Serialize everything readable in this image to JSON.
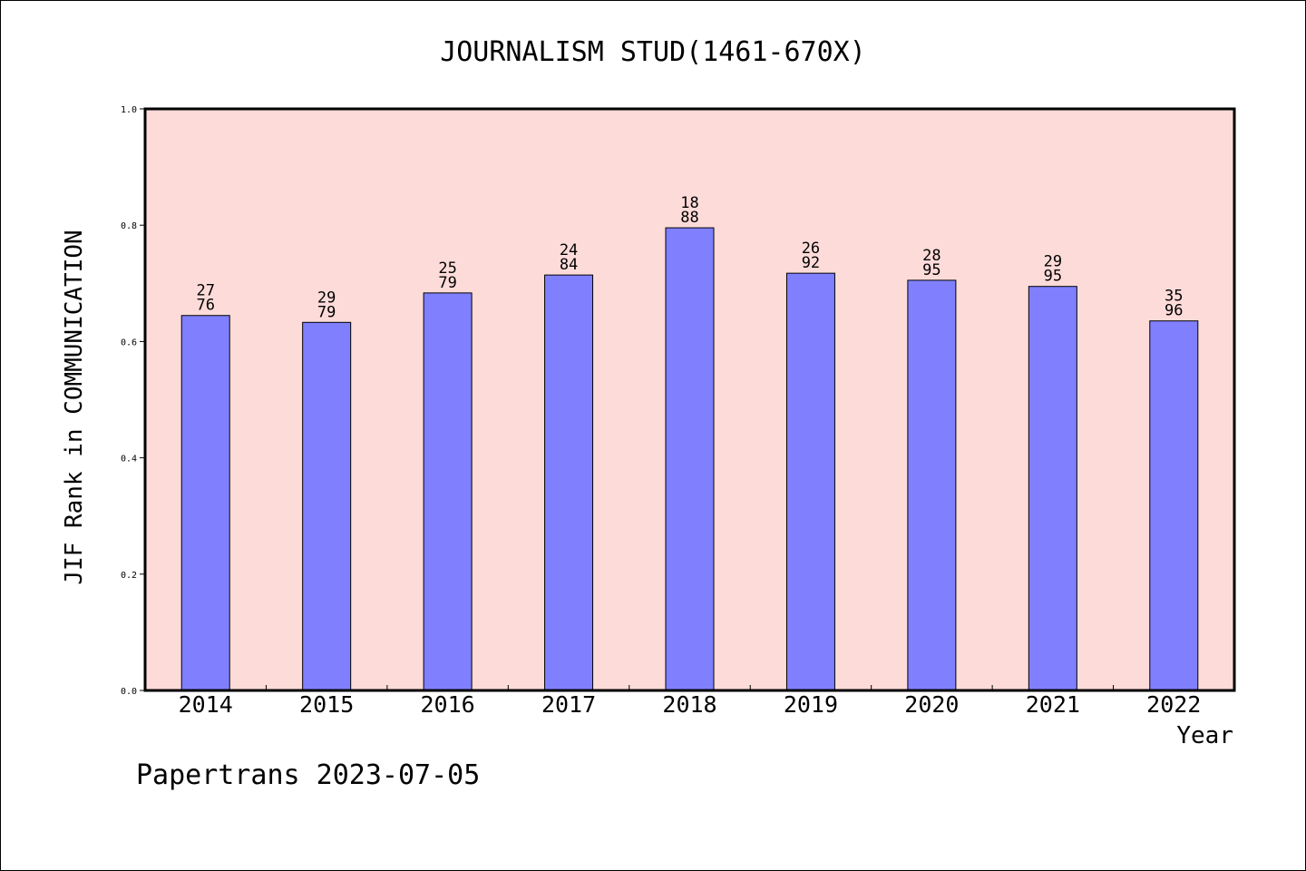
{
  "chart_data": {
    "type": "bar",
    "title": "JOURNALISM STUD(1461-670X)",
    "xlabel": "Year",
    "ylabel": "JIF Rank in COMMUNICATION",
    "categories": [
      "2014",
      "2015",
      "2016",
      "2017",
      "2018",
      "2019",
      "2020",
      "2021",
      "2022"
    ],
    "values": [
      0.6447,
      0.6329,
      0.6835,
      0.7143,
      0.7955,
      0.7174,
      0.7053,
      0.6947,
      0.6354
    ],
    "rank_labels": [
      {
        "rank": "27",
        "total": "76"
      },
      {
        "rank": "29",
        "total": "79"
      },
      {
        "rank": "25",
        "total": "79"
      },
      {
        "rank": "24",
        "total": "84"
      },
      {
        "rank": "18",
        "total": "88"
      },
      {
        "rank": "26",
        "total": "92"
      },
      {
        "rank": "28",
        "total": "95"
      },
      {
        "rank": "29",
        "total": "95"
      },
      {
        "rank": "35",
        "total": "96"
      }
    ],
    "ylim": [
      0.0,
      1.0
    ],
    "yticks": [
      "0.0",
      "0.2",
      "0.4",
      "0.6",
      "0.8",
      "1.0"
    ],
    "grid": false,
    "colors": {
      "plot_background": "#FDDBD9",
      "bar_fill": "#8080FF",
      "bar_edge": "#000000"
    }
  },
  "footer": {
    "text": "Papertrans 2023-07-05"
  }
}
